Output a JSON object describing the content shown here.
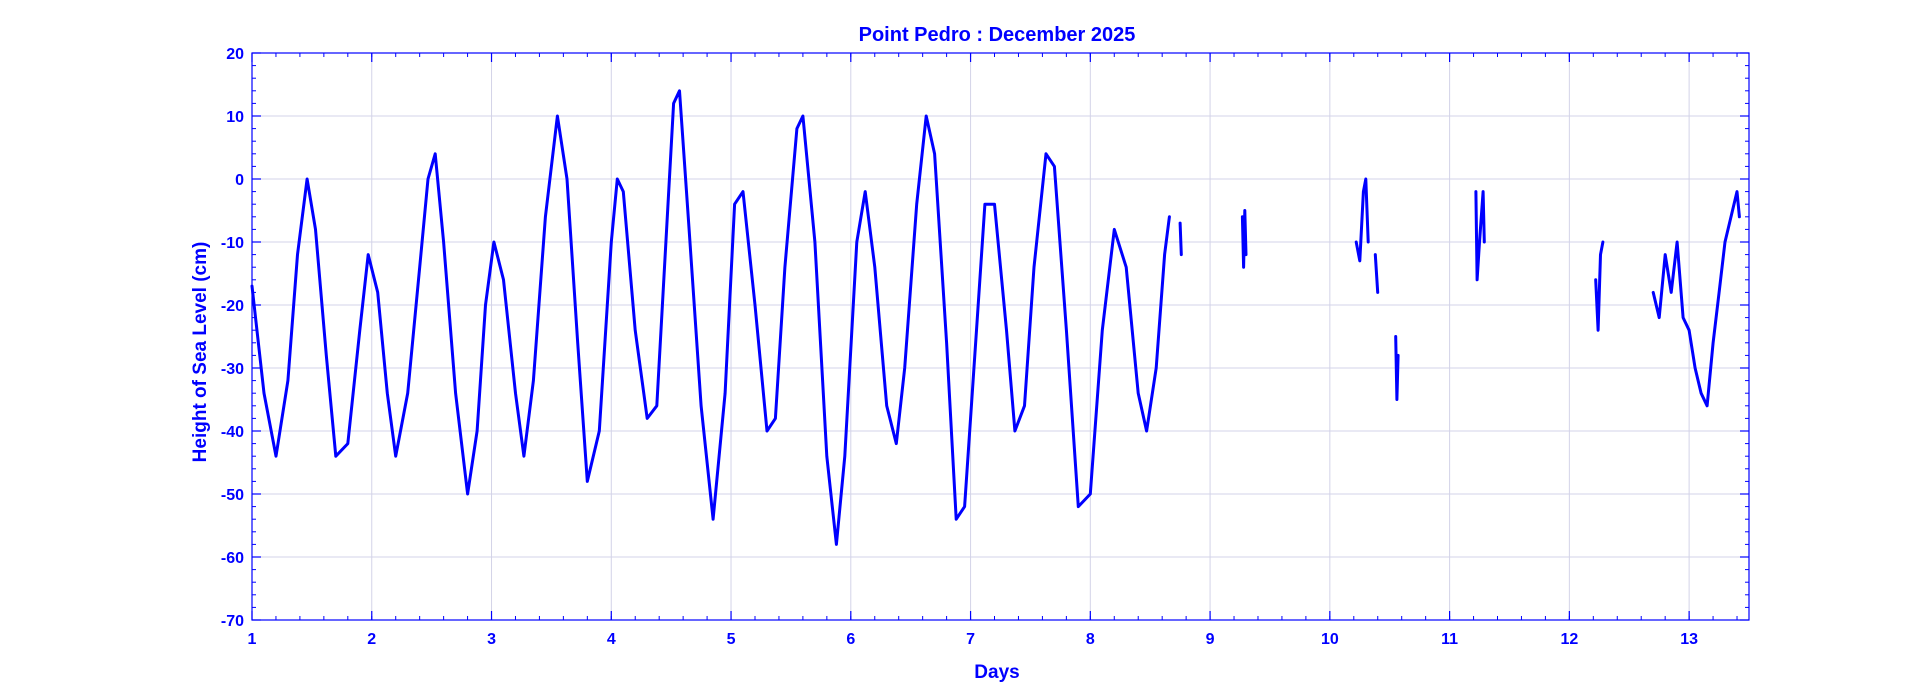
{
  "chart_data": {
    "type": "line",
    "title": "Point Pedro : December 2025",
    "xlabel": "Days",
    "ylabel": "Height of Sea Level (cm)",
    "xlim": [
      1,
      13.5
    ],
    "ylim": [
      -70,
      20
    ],
    "x_ticks": [
      1,
      2,
      3,
      4,
      5,
      6,
      7,
      8,
      9,
      10,
      11,
      12,
      13
    ],
    "y_ticks": [
      20,
      10,
      0,
      -10,
      -20,
      -30,
      -40,
      -50,
      -60,
      -70
    ],
    "grid": true,
    "colors": {
      "line": "#0000ff",
      "text": "#0000ff",
      "grid": "#d3d3e8"
    },
    "series": [
      {
        "segments": [
          [
            [
              1.0,
              -17
            ],
            [
              1.1,
              -34
            ],
            [
              1.2,
              -44
            ],
            [
              1.3,
              -32
            ],
            [
              1.38,
              -12
            ],
            [
              1.46,
              0
            ],
            [
              1.53,
              -8
            ],
            [
              1.62,
              -28
            ],
            [
              1.7,
              -44
            ],
            [
              1.8,
              -42
            ],
            [
              1.9,
              -24
            ],
            [
              1.97,
              -12
            ],
            [
              2.05,
              -18
            ],
            [
              2.13,
              -34
            ],
            [
              2.2,
              -44
            ],
            [
              2.3,
              -34
            ],
            [
              2.4,
              -14
            ],
            [
              2.47,
              0
            ],
            [
              2.53,
              4
            ],
            [
              2.6,
              -10
            ],
            [
              2.7,
              -34
            ],
            [
              2.8,
              -50
            ],
            [
              2.88,
              -40
            ],
            [
              2.95,
              -20
            ],
            [
              3.02,
              -10
            ],
            [
              3.1,
              -16
            ],
            [
              3.2,
              -34
            ],
            [
              3.27,
              -44
            ],
            [
              3.35,
              -32
            ],
            [
              3.45,
              -6
            ],
            [
              3.55,
              10
            ],
            [
              3.63,
              0
            ],
            [
              3.72,
              -26
            ],
            [
              3.8,
              -48
            ],
            [
              3.9,
              -40
            ],
            [
              4.0,
              -10
            ],
            [
              4.05,
              0
            ],
            [
              4.1,
              -2
            ],
            [
              4.2,
              -24
            ],
            [
              4.3,
              -38
            ],
            [
              4.38,
              -36
            ],
            [
              4.45,
              -12
            ],
            [
              4.52,
              12
            ],
            [
              4.57,
              14
            ],
            [
              4.65,
              -8
            ],
            [
              4.75,
              -36
            ],
            [
              4.85,
              -54
            ],
            [
              4.95,
              -34
            ],
            [
              5.03,
              -4
            ],
            [
              5.1,
              -2
            ],
            [
              5.2,
              -20
            ],
            [
              5.3,
              -40
            ],
            [
              5.37,
              -38
            ],
            [
              5.45,
              -14
            ],
            [
              5.55,
              8
            ],
            [
              5.6,
              10
            ],
            [
              5.7,
              -10
            ],
            [
              5.8,
              -44
            ],
            [
              5.88,
              -58
            ],
            [
              5.95,
              -44
            ],
            [
              6.05,
              -10
            ],
            [
              6.12,
              -2
            ],
            [
              6.2,
              -14
            ],
            [
              6.3,
              -36
            ],
            [
              6.38,
              -42
            ],
            [
              6.45,
              -30
            ],
            [
              6.55,
              -4
            ],
            [
              6.63,
              10
            ],
            [
              6.7,
              4
            ],
            [
              6.8,
              -26
            ],
            [
              6.88,
              -54
            ],
            [
              6.95,
              -52
            ],
            [
              7.05,
              -24
            ],
            [
              7.12,
              -4
            ],
            [
              7.2,
              -4
            ],
            [
              7.3,
              -24
            ],
            [
              7.37,
              -40
            ],
            [
              7.45,
              -36
            ],
            [
              7.53,
              -14
            ],
            [
              7.63,
              4
            ],
            [
              7.7,
              2
            ],
            [
              7.8,
              -24
            ],
            [
              7.9,
              -52
            ],
            [
              8.0,
              -50
            ],
            [
              8.1,
              -24
            ],
            [
              8.2,
              -8
            ],
            [
              8.3,
              -14
            ],
            [
              8.4,
              -34
            ],
            [
              8.47,
              -40
            ],
            [
              8.55,
              -30
            ],
            [
              8.62,
              -12
            ],
            [
              8.66,
              -6
            ]
          ],
          [
            [
              8.75,
              -7
            ],
            [
              8.76,
              -12
            ]
          ],
          [
            [
              9.27,
              -6
            ],
            [
              9.28,
              -14
            ],
            [
              9.29,
              -5
            ],
            [
              9.3,
              -12
            ]
          ],
          [
            [
              10.22,
              -10
            ],
            [
              10.25,
              -13
            ],
            [
              10.28,
              -2
            ],
            [
              10.3,
              0
            ],
            [
              10.32,
              -10
            ]
          ],
          [
            [
              10.38,
              -12
            ],
            [
              10.4,
              -18
            ]
          ],
          [
            [
              10.55,
              -25
            ],
            [
              10.56,
              -35
            ],
            [
              10.57,
              -28
            ]
          ],
          [
            [
              11.22,
              -2
            ],
            [
              11.23,
              -16
            ],
            [
              11.25,
              -10
            ],
            [
              11.28,
              -2
            ],
            [
              11.29,
              -10
            ]
          ],
          [
            [
              12.22,
              -16
            ],
            [
              12.24,
              -24
            ],
            [
              12.26,
              -12
            ],
            [
              12.28,
              -10
            ]
          ],
          [
            [
              12.7,
              -18
            ],
            [
              12.75,
              -22
            ],
            [
              12.8,
              -12
            ],
            [
              12.85,
              -18
            ],
            [
              12.9,
              -10
            ],
            [
              12.95,
              -22
            ],
            [
              13.0,
              -24
            ],
            [
              13.05,
              -30
            ],
            [
              13.1,
              -34
            ],
            [
              13.15,
              -36
            ],
            [
              13.2,
              -26
            ],
            [
              13.25,
              -18
            ],
            [
              13.3,
              -10
            ],
            [
              13.35,
              -6
            ],
            [
              13.4,
              -2
            ],
            [
              13.42,
              -6
            ]
          ]
        ]
      }
    ]
  }
}
